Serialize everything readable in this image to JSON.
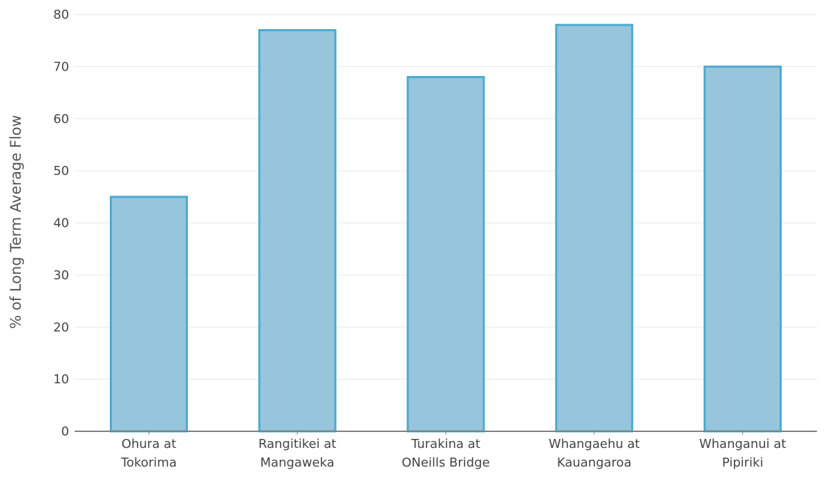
{
  "chart_data": {
    "type": "bar",
    "categories": [
      [
        "Ohura at",
        "Tokorima"
      ],
      [
        "Rangitikei at",
        "Mangaweka"
      ],
      [
        "Turakina at",
        "ONeills Bridge"
      ],
      [
        "Whangaehu at",
        "Kauangaroa"
      ],
      [
        "Whanganui at",
        "Pipiriki"
      ]
    ],
    "values": [
      45,
      77,
      68,
      78,
      70
    ],
    "title": "",
    "xlabel": "",
    "ylabel": "% of Long Term Average Flow",
    "ylim": [
      0,
      80
    ],
    "yticks": [
      0,
      10,
      20,
      30,
      40,
      50,
      60,
      70,
      80
    ],
    "grid": true,
    "legend": "none",
    "colors": {
      "bar_fill": "#97c5dc",
      "bar_stroke": "#4aaace"
    }
  }
}
